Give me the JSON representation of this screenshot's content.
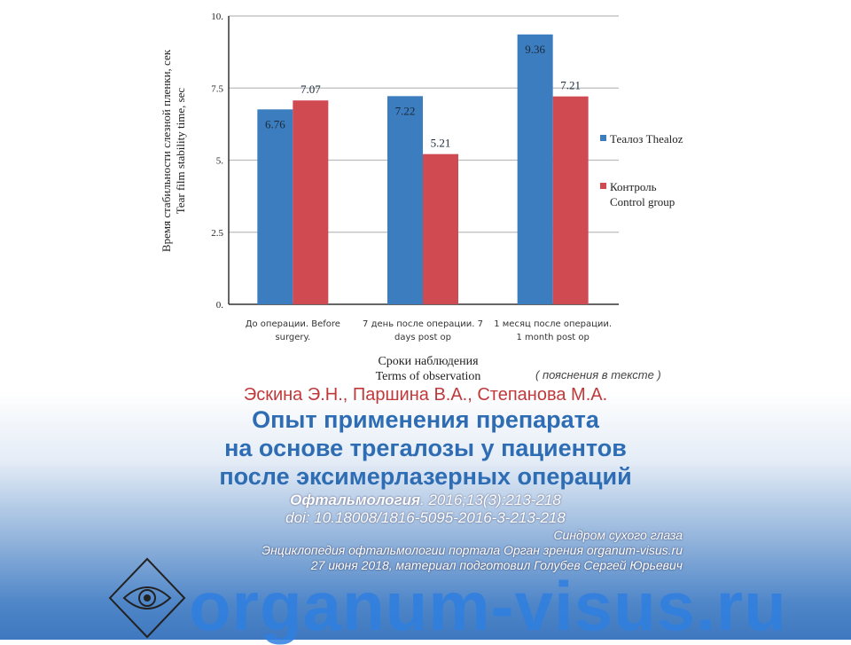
{
  "chart_data": {
    "type": "bar",
    "categories": [
      [
        "До операции. Before",
        "surgery."
      ],
      [
        "7 день после операции. 7",
        "days post op"
      ],
      [
        "1 месяц после операции.",
        "1 month post op"
      ]
    ],
    "series": [
      {
        "name": "Теалоз Thealoz",
        "values": [
          6.76,
          7.22,
          9.36
        ],
        "color": "#3c7dbf"
      },
      {
        "name": "Контроль Control group",
        "legend_lines": [
          "Контроль",
          "Control group"
        ],
        "values": [
          7.07,
          5.21,
          7.21
        ],
        "color": "#d04a52"
      }
    ],
    "data_labels": {
      "s0": [
        "6.76",
        "7.22",
        "9.36"
      ],
      "s1": [
        "7.07",
        "5.21",
        "7.21"
      ]
    },
    "ylim": [
      0,
      10
    ],
    "yticks": [
      "0.",
      "2.5",
      "5.",
      "7.5",
      "10."
    ],
    "ylabel": [
      "Время стабильности слезной пленки, сек",
      "Tear film stability time, sec"
    ],
    "xlabel": [
      "Сроки наблюдения",
      "Terms of observation"
    ],
    "grid": true,
    "legend": "right"
  },
  "note": "( пояснения в тексте )",
  "authors": "Эскина Э.Н., Паршина В.А., Степанова М.А.",
  "title_lines": [
    "Опыт применения препарата",
    "на основе трегалозы у пациентов",
    "после эксимерлазерных операций"
  ],
  "journal": "Офтальмология",
  "journal_ref": ". 2016;13(3):213-218",
  "doi": "doi: 10.18008/1816-5095-2016-3-213-218",
  "watermark": "organum-visus.ru",
  "footer": {
    "topic": "Синдром сухого глаза",
    "source": "Энциклопедия офтальмологии портала Орган зрения organum-visus.ru",
    "credit": "27 июня 2018, материал подготовил Голубев Сергей Юрьевич"
  }
}
